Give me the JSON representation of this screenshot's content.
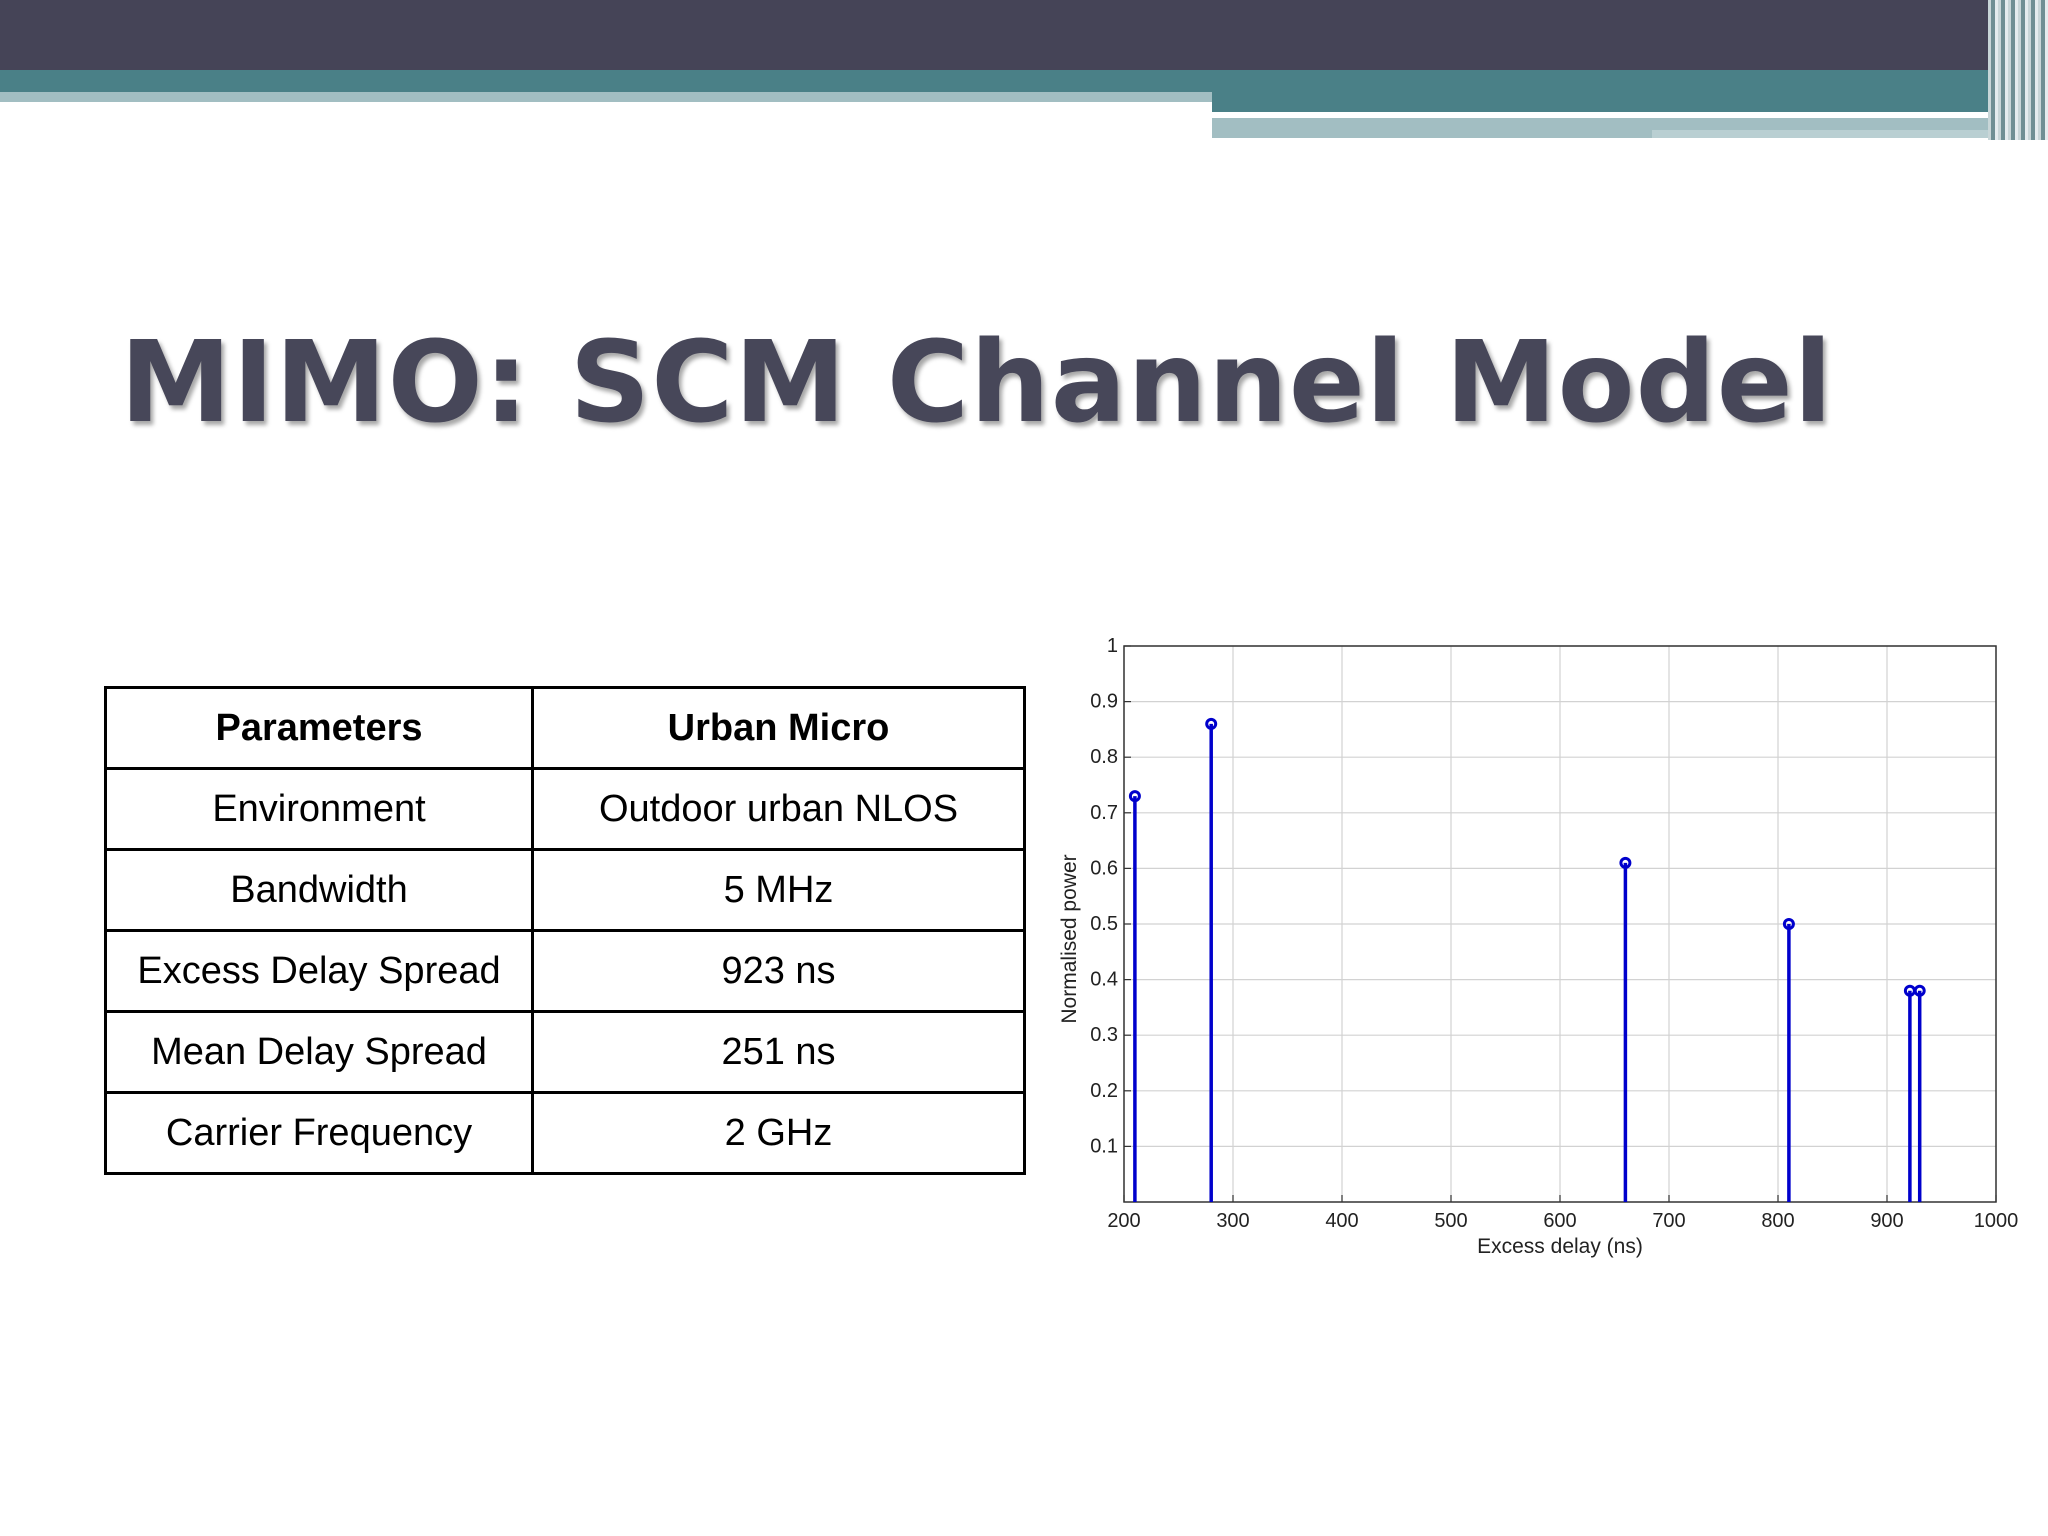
{
  "title": "MIMO: SCM Channel Model",
  "table": {
    "headers": [
      "Parameters",
      "Urban Micro"
    ],
    "rows": [
      [
        "Environment",
        "Outdoor urban NLOS"
      ],
      [
        "Bandwidth",
        "5 MHz"
      ],
      [
        "Excess Delay Spread",
        "923 ns"
      ],
      [
        "Mean Delay Spread",
        "251 ns"
      ],
      [
        "Carrier Frequency",
        "2 GHz"
      ]
    ]
  },
  "colors": {
    "banner_dark": "#454457",
    "banner_teal": "#4a8087",
    "banner_light": "#a2bec2",
    "title_text": "#474759",
    "stem": "#0000cc"
  },
  "chart_data": {
    "type": "stem",
    "xlabel": "Excess delay (ns)",
    "ylabel": "Normalised power",
    "xlim": [
      200,
      1000
    ],
    "ylim": [
      0,
      1
    ],
    "x_ticks": [
      "200",
      "300",
      "400",
      "500",
      "600",
      "700",
      "800",
      "900",
      "1000"
    ],
    "y_ticks": [
      "0.1",
      "0.2",
      "0.3",
      "0.4",
      "0.5",
      "0.6",
      "0.7",
      "0.8",
      "0.9",
      "1"
    ],
    "grid": true,
    "points": [
      {
        "x": 210,
        "y": 0.73
      },
      {
        "x": 280,
        "y": 0.86
      },
      {
        "x": 660,
        "y": 0.61
      },
      {
        "x": 810,
        "y": 0.5
      },
      {
        "x": 921,
        "y": 0.38
      },
      {
        "x": 930,
        "y": 0.38
      }
    ]
  }
}
